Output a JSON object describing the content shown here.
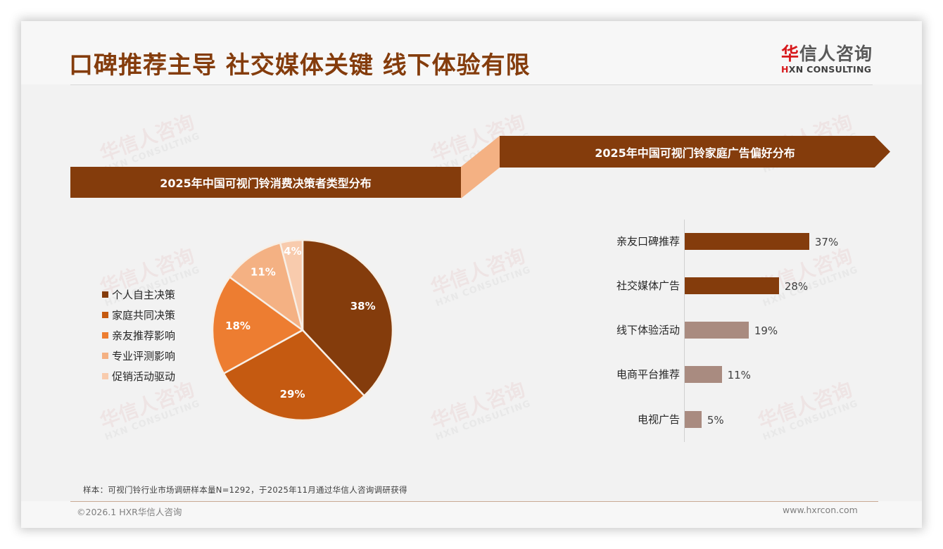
{
  "header": {
    "title": "口碑推荐主导 社交媒体关键 线下体验有限",
    "logo": {
      "cn_first": "华",
      "cn_rest": "信人咨询",
      "en_first": "H",
      "en_rest": "XN CONSULTING"
    }
  },
  "watermark": {
    "cn": "华信人咨询",
    "en": "HXN CONSULTING"
  },
  "colors": {
    "brand_brown": "#843c0c",
    "connector": "#f4b183",
    "bar_primary": "#843c0c",
    "bar_secondary": "#a98b80",
    "pie": [
      "#843c0c",
      "#c55a11",
      "#ed7d31",
      "#f4b183",
      "#f8cbad"
    ]
  },
  "left_panel": {
    "banner_title": "2025年中国可视门铃消费决策者类型分布"
  },
  "right_panel": {
    "banner_title": "2025年中国可视门铃家庭广告偏好分布"
  },
  "chart_data": [
    {
      "type": "pie",
      "title": "2025年中国可视门铃消费决策者类型分布",
      "categories": [
        "个人自主决策",
        "家庭共同决策",
        "亲友推荐影响",
        "专业评测影响",
        "促销活动驱动"
      ],
      "values": [
        38,
        29,
        18,
        11,
        4
      ],
      "labels": [
        "38%",
        "29%",
        "18%",
        "11%",
        "4%"
      ],
      "colors": [
        "#843c0c",
        "#c55a11",
        "#ed7d31",
        "#f4b183",
        "#f8cbad"
      ],
      "legend_position": "left",
      "start_angle": "12 o'clock",
      "direction": "clockwise"
    },
    {
      "type": "bar",
      "orientation": "horizontal",
      "title": "2025年中国可视门铃家庭广告偏好分布",
      "categories": [
        "亲友口碑推荐",
        "社交媒体广告",
        "线下体验活动",
        "电商平台推荐",
        "电视广告"
      ],
      "values": [
        37,
        28,
        19,
        11,
        5
      ],
      "labels": [
        "37%",
        "28%",
        "19%",
        "11%",
        "5%"
      ],
      "colors": [
        "#843c0c",
        "#843c0c",
        "#a98b80",
        "#a98b80",
        "#a98b80"
      ],
      "xlabel": "",
      "ylabel": "",
      "grid": false,
      "xlim": [
        0,
        40
      ]
    }
  ],
  "footer": {
    "note": "样本：可视门铃行业市场调研样本量N=1292，于2025年11月通过华信人咨询调研获得",
    "copyright": "©2026.1 HXR华信人咨询",
    "website": "www.hxrcon.com"
  }
}
